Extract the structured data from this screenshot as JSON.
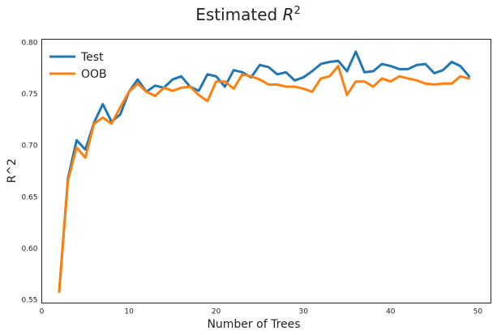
{
  "chart_data": {
    "type": "line",
    "title": {
      "text": "Estimated ",
      "math": "R",
      "sup": "2"
    },
    "xlabel": "Number of Trees",
    "ylabel": "R^2",
    "xlim": [
      0,
      51.5
    ],
    "ylim": [
      0.547,
      0.803
    ],
    "x_ticks": [
      0,
      10,
      20,
      30,
      40,
      50
    ],
    "y_ticks": [
      0.55,
      0.6,
      0.65,
      0.7,
      0.75,
      0.8
    ],
    "y_tick_labels": [
      "0.55",
      "0.60",
      "0.65",
      "0.70",
      "0.75",
      "0.80"
    ],
    "grid": false,
    "legend": "top-left",
    "x": [
      2,
      3,
      4,
      5,
      6,
      7,
      8,
      9,
      10,
      11,
      12,
      13,
      14,
      15,
      16,
      17,
      18,
      19,
      20,
      21,
      22,
      23,
      24,
      25,
      26,
      27,
      28,
      29,
      30,
      31,
      32,
      33,
      34,
      35,
      36,
      37,
      38,
      39,
      40,
      41,
      42,
      43,
      44,
      45,
      46,
      47,
      48,
      49
    ],
    "series": [
      {
        "name": "Test",
        "color": "#1f77b4",
        "values": [
          0.558,
          0.668,
          0.705,
          0.696,
          0.722,
          0.74,
          0.723,
          0.73,
          0.752,
          0.764,
          0.752,
          0.758,
          0.756,
          0.764,
          0.767,
          0.757,
          0.753,
          0.769,
          0.767,
          0.757,
          0.773,
          0.771,
          0.766,
          0.778,
          0.776,
          0.769,
          0.771,
          0.763,
          0.766,
          0.772,
          0.779,
          0.781,
          0.782,
          0.772,
          0.791,
          0.771,
          0.772,
          0.779,
          0.777,
          0.774,
          0.774,
          0.778,
          0.779,
          0.77,
          0.773,
          0.781,
          0.777,
          0.767
        ]
      },
      {
        "name": "OOB",
        "color": "#ff7f0e",
        "values": [
          0.558,
          0.666,
          0.698,
          0.688,
          0.721,
          0.727,
          0.721,
          0.737,
          0.752,
          0.76,
          0.752,
          0.748,
          0.756,
          0.753,
          0.756,
          0.757,
          0.749,
          0.743,
          0.762,
          0.762,
          0.755,
          0.769,
          0.767,
          0.764,
          0.759,
          0.759,
          0.757,
          0.757,
          0.755,
          0.752,
          0.765,
          0.767,
          0.777,
          0.749,
          0.762,
          0.762,
          0.757,
          0.765,
          0.762,
          0.767,
          0.765,
          0.763,
          0.76,
          0.759,
          0.76,
          0.76,
          0.767,
          0.765
        ]
      }
    ]
  }
}
